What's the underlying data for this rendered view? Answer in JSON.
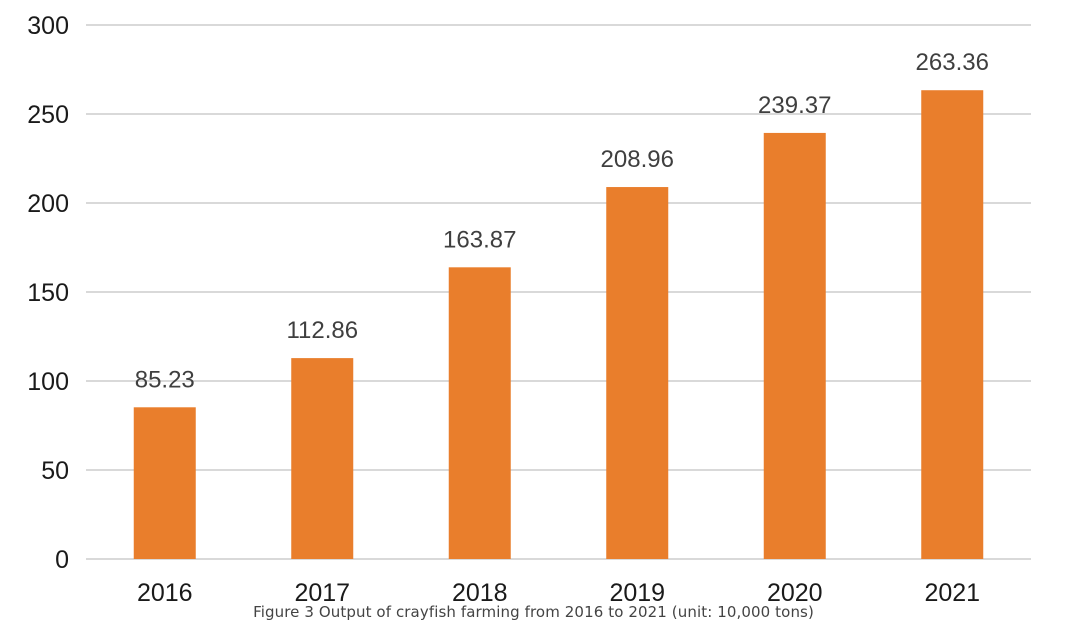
{
  "caption": "Figure 3 Output of crayfish farming from 2016 to 2021 (unit: 10,000 tons)",
  "chart_data": {
    "type": "bar",
    "categories": [
      "2016",
      "2017",
      "2018",
      "2019",
      "2020",
      "2021"
    ],
    "values": [
      85.23,
      112.86,
      163.87,
      208.96,
      239.37,
      263.36
    ],
    "data_labels": [
      "85.23",
      "112.86",
      "163.87",
      "208.96",
      "239.37",
      "263.36"
    ],
    "title": "",
    "xlabel": "",
    "ylabel": "",
    "ylim": [
      0,
      300
    ],
    "yticks": [
      0,
      50,
      100,
      150,
      200,
      250,
      300
    ],
    "grid": true,
    "bar_color": "#E97E2C",
    "grid_color": "#D9D9D9",
    "tick_label_color": "#1a1a1a",
    "data_label_color": "#3f3f3f"
  }
}
